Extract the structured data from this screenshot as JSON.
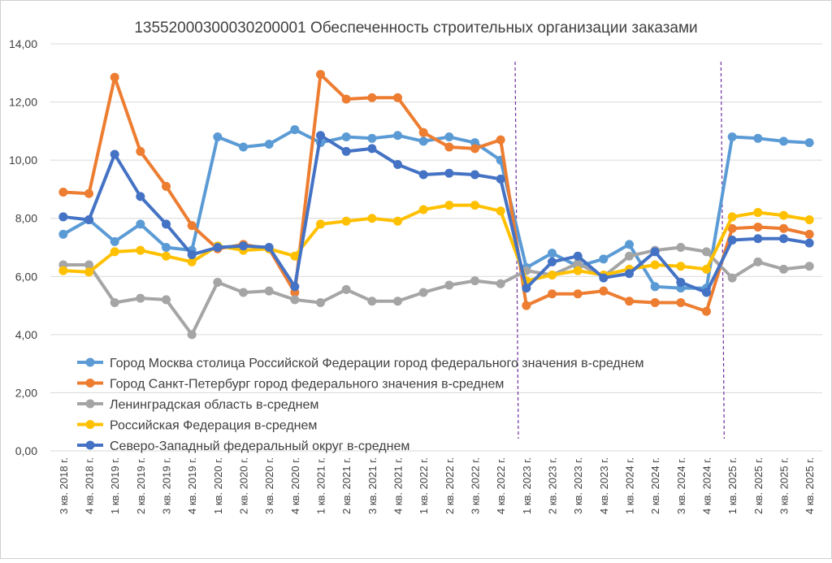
{
  "chart_data": {
    "type": "line",
    "title": "13552000300030200001 Обеспеченность строительных организации заказами",
    "xlabel": "",
    "ylabel": "",
    "ylim": [
      0,
      14
    ],
    "yticks": [
      0,
      2,
      4,
      6,
      8,
      10,
      12,
      14
    ],
    "ytick_labels": [
      "0,00",
      "2,00",
      "4,00",
      "6,00",
      "8,00",
      "10,00",
      "12,00",
      "14,00"
    ],
    "grid": true,
    "legend_position": "bottom-left inside",
    "categories": [
      "3 кв. 2018 г.",
      "4 кв. 2018 г.",
      "1 кв. 2019 г.",
      "2 кв. 2019 г.",
      "3 кв. 2019 г.",
      "4 кв. 2019 г.",
      "1 кв. 2020 г.",
      "2 кв. 2020 г.",
      "3 кв. 2020 г.",
      "4 кв. 2020 г.",
      "1 кв. 2021 г.",
      "2 кв. 2021 г.",
      "3 кв. 2021 г.",
      "4 кв. 2021 г.",
      "1 кв. 2022 г.",
      "2 кв. 2022 г.",
      "3 кв. 2022 г.",
      "4 кв. 2022 г.",
      "1 кв. 2023 г.",
      "2 кв. 2023 г.",
      "3 кв. 2023 г.",
      "4 кв. 2023 г.",
      "1 кв. 2024 г.",
      "2 кв. 2024 г.",
      "3 кв. 2024 г.",
      "4 кв. 2024 г.",
      "1 кв. 2025 г.",
      "2 кв. 2025 г.",
      "3 кв. 2025 г.",
      "4 кв. 2025 г."
    ],
    "series": [
      {
        "name": "Город Москва столица Российской Федерации город федерального значения в-среднем",
        "color": "#5B9BD5",
        "values": [
          7.45,
          7.95,
          7.2,
          7.8,
          7.0,
          6.9,
          10.8,
          10.45,
          10.55,
          11.05,
          10.6,
          10.8,
          10.75,
          10.85,
          10.65,
          10.8,
          10.6,
          10.0,
          6.3,
          6.8,
          6.35,
          6.6,
          7.1,
          5.65,
          5.6,
          5.6,
          10.8,
          10.75,
          10.65,
          10.6
        ]
      },
      {
        "name": "Город Санкт-Петербург город федерального значения в-среднем",
        "color": "#ED7D31",
        "values": [
          8.9,
          8.85,
          12.85,
          10.3,
          9.1,
          7.75,
          6.95,
          7.1,
          6.95,
          5.45,
          12.95,
          12.1,
          12.15,
          12.15,
          10.95,
          10.45,
          10.4,
          10.7,
          5.0,
          5.4,
          5.4,
          5.5,
          5.15,
          5.1,
          5.1,
          4.8,
          7.65,
          7.7,
          7.65,
          7.45
        ]
      },
      {
        "name": "Ленинградская область в-среднем",
        "color": "#A5A5A5",
        "values": [
          6.4,
          6.4,
          5.1,
          5.25,
          5.2,
          4.0,
          5.8,
          5.45,
          5.5,
          5.2,
          5.1,
          5.55,
          5.15,
          5.15,
          5.45,
          5.7,
          5.85,
          5.75,
          6.2,
          6.05,
          6.45,
          6.0,
          6.7,
          6.9,
          7.0,
          6.85,
          5.95,
          6.5,
          6.25,
          6.35
        ]
      },
      {
        "name": "Российская Федерация в-среднем",
        "color": "#FFC000",
        "values": [
          6.2,
          6.15,
          6.85,
          6.9,
          6.7,
          6.5,
          7.05,
          6.9,
          6.95,
          6.7,
          7.8,
          7.9,
          8.0,
          7.9,
          8.3,
          8.45,
          8.45,
          8.25,
          5.85,
          6.05,
          6.2,
          6.05,
          6.25,
          6.4,
          6.35,
          6.25,
          8.05,
          8.2,
          8.1,
          7.95
        ]
      },
      {
        "name": "Северо-Западный федеральный округ в-среднем",
        "color": "#4472C4",
        "values": [
          8.05,
          7.95,
          10.2,
          8.75,
          7.8,
          6.75,
          7.0,
          7.05,
          7.0,
          5.65,
          10.85,
          10.3,
          10.4,
          9.85,
          9.5,
          9.55,
          9.5,
          9.35,
          5.6,
          6.5,
          6.7,
          5.95,
          6.1,
          6.85,
          5.8,
          5.45,
          7.25,
          7.3,
          7.3,
          7.15
        ]
      }
    ],
    "annotations": [
      {
        "type": "vertical-dashed-line",
        "color": "#7030A0",
        "between": [
          "4 кв. 2022 г.",
          "1 кв. 2023 г."
        ]
      },
      {
        "type": "vertical-dashed-line",
        "color": "#7030A0",
        "between": [
          "4 кв. 2024 г.",
          "1 кв. 2025 г."
        ]
      }
    ]
  }
}
